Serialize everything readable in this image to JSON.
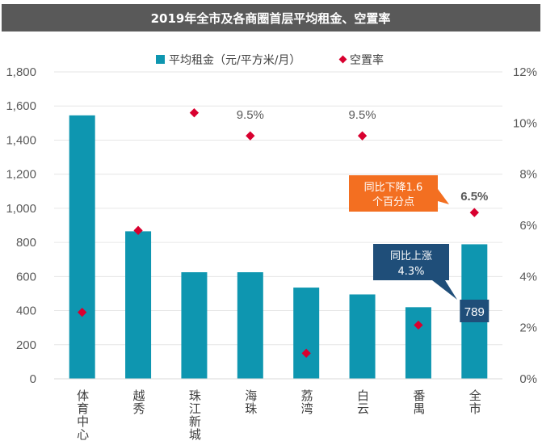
{
  "title": "2019年全市及各商圈首层平均租金、空置率",
  "colors": {
    "title_bg": "#595959",
    "bar": "#0e96b0",
    "marker": "#d8002f",
    "grid": "#e6e6e6",
    "callout_orange": "#f36f21",
    "callout_navy": "#1f4e79"
  },
  "chart_data": {
    "type": "bar",
    "categories": [
      "体育中心",
      "越秀",
      "珠江新城",
      "海珠",
      "荔湾",
      "白云",
      "番禺",
      "全市"
    ],
    "series": [
      {
        "name": "平均租金（元/平方米/月）",
        "type": "bar",
        "axis": "left",
        "values": [
          1545,
          865,
          625,
          625,
          535,
          495,
          420,
          789
        ]
      },
      {
        "name": "空置率",
        "type": "scatter",
        "axis": "right",
        "values": [
          2.6,
          5.8,
          10.4,
          9.5,
          1.0,
          9.5,
          2.1,
          6.5
        ]
      }
    ],
    "left_axis": {
      "ylim": [
        0,
        1800
      ],
      "ticks": [
        "0",
        "200",
        "400",
        "600",
        "800",
        "1,000",
        "1,200",
        "1,400",
        "1,600",
        "1,800"
      ]
    },
    "right_axis": {
      "ylim": [
        0,
        12
      ],
      "ticks": [
        "0%",
        "2%",
        "4%",
        "6%",
        "8%",
        "10%",
        "12%"
      ]
    },
    "data_labels": [
      {
        "category": "海珠",
        "series": "空置率",
        "text": "9.5%",
        "bold": false
      },
      {
        "category": "白云",
        "series": "空置率",
        "text": "9.5%",
        "bold": false
      },
      {
        "category": "全市",
        "series": "空置率",
        "text": "6.5%",
        "bold": true
      },
      {
        "category": "全市",
        "series": "平均租金（元/平方米/月）",
        "text": "789",
        "boxed": true
      }
    ],
    "legend": {
      "position": "top",
      "entries": [
        "平均租金（元/平方米/月）",
        "空置率"
      ]
    },
    "annotations": [
      {
        "name": "vacancy-change-callout",
        "lines": [
          "同比下降1.6",
          "个百分点"
        ]
      },
      {
        "name": "rent-change-callout",
        "lines": [
          "同比上涨",
          "4.3%"
        ]
      }
    ]
  }
}
